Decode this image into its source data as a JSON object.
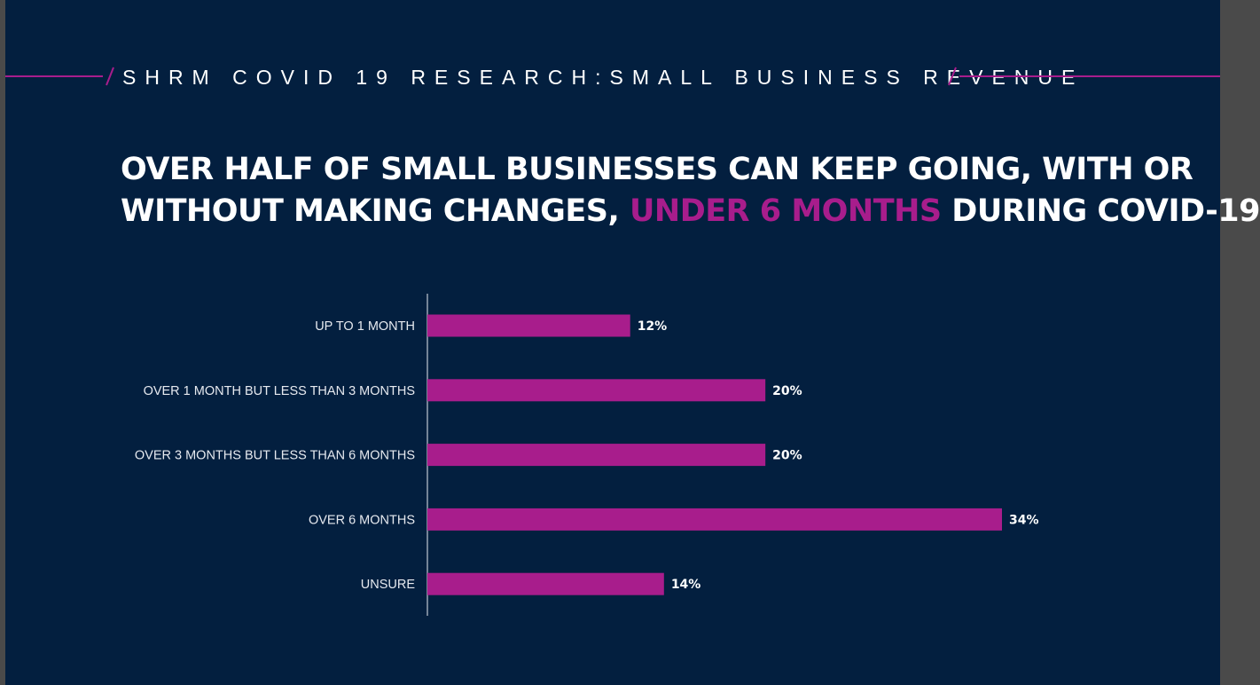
{
  "header": {
    "text": "SHRM COVID 19 RESEARCH:SMALL BUSINESS REVENUE"
  },
  "headline": {
    "line1": "OVER HALF OF SMALL BUSINESSES CAN KEEP GOING, WITH OR",
    "line2_start": "WITHOUT MAKING CHANGES,",
    "line2_highlight": "UNDER 6 MONTHS",
    "line2_end": "DURING COVID-19"
  },
  "colors": {
    "background": "#031f3f",
    "accent": "#a81d8c",
    "text": "#ffffff"
  },
  "chart_data": {
    "type": "bar",
    "orientation": "horizontal",
    "categories": [
      "UP TO 1 MONTH",
      "OVER 1 MONTH BUT LESS THAN 3 MONTHS",
      "OVER 3 MONTHS BUT LESS THAN 6 MONTHS",
      "OVER 6 MONTHS",
      "UNSURE"
    ],
    "values": [
      12,
      20,
      20,
      34,
      14
    ],
    "value_labels": [
      "12%",
      "20%",
      "20%",
      "34%",
      "14%"
    ],
    "unit": "%",
    "xlim": [
      0,
      34
    ],
    "grid": false,
    "legend": "none"
  }
}
